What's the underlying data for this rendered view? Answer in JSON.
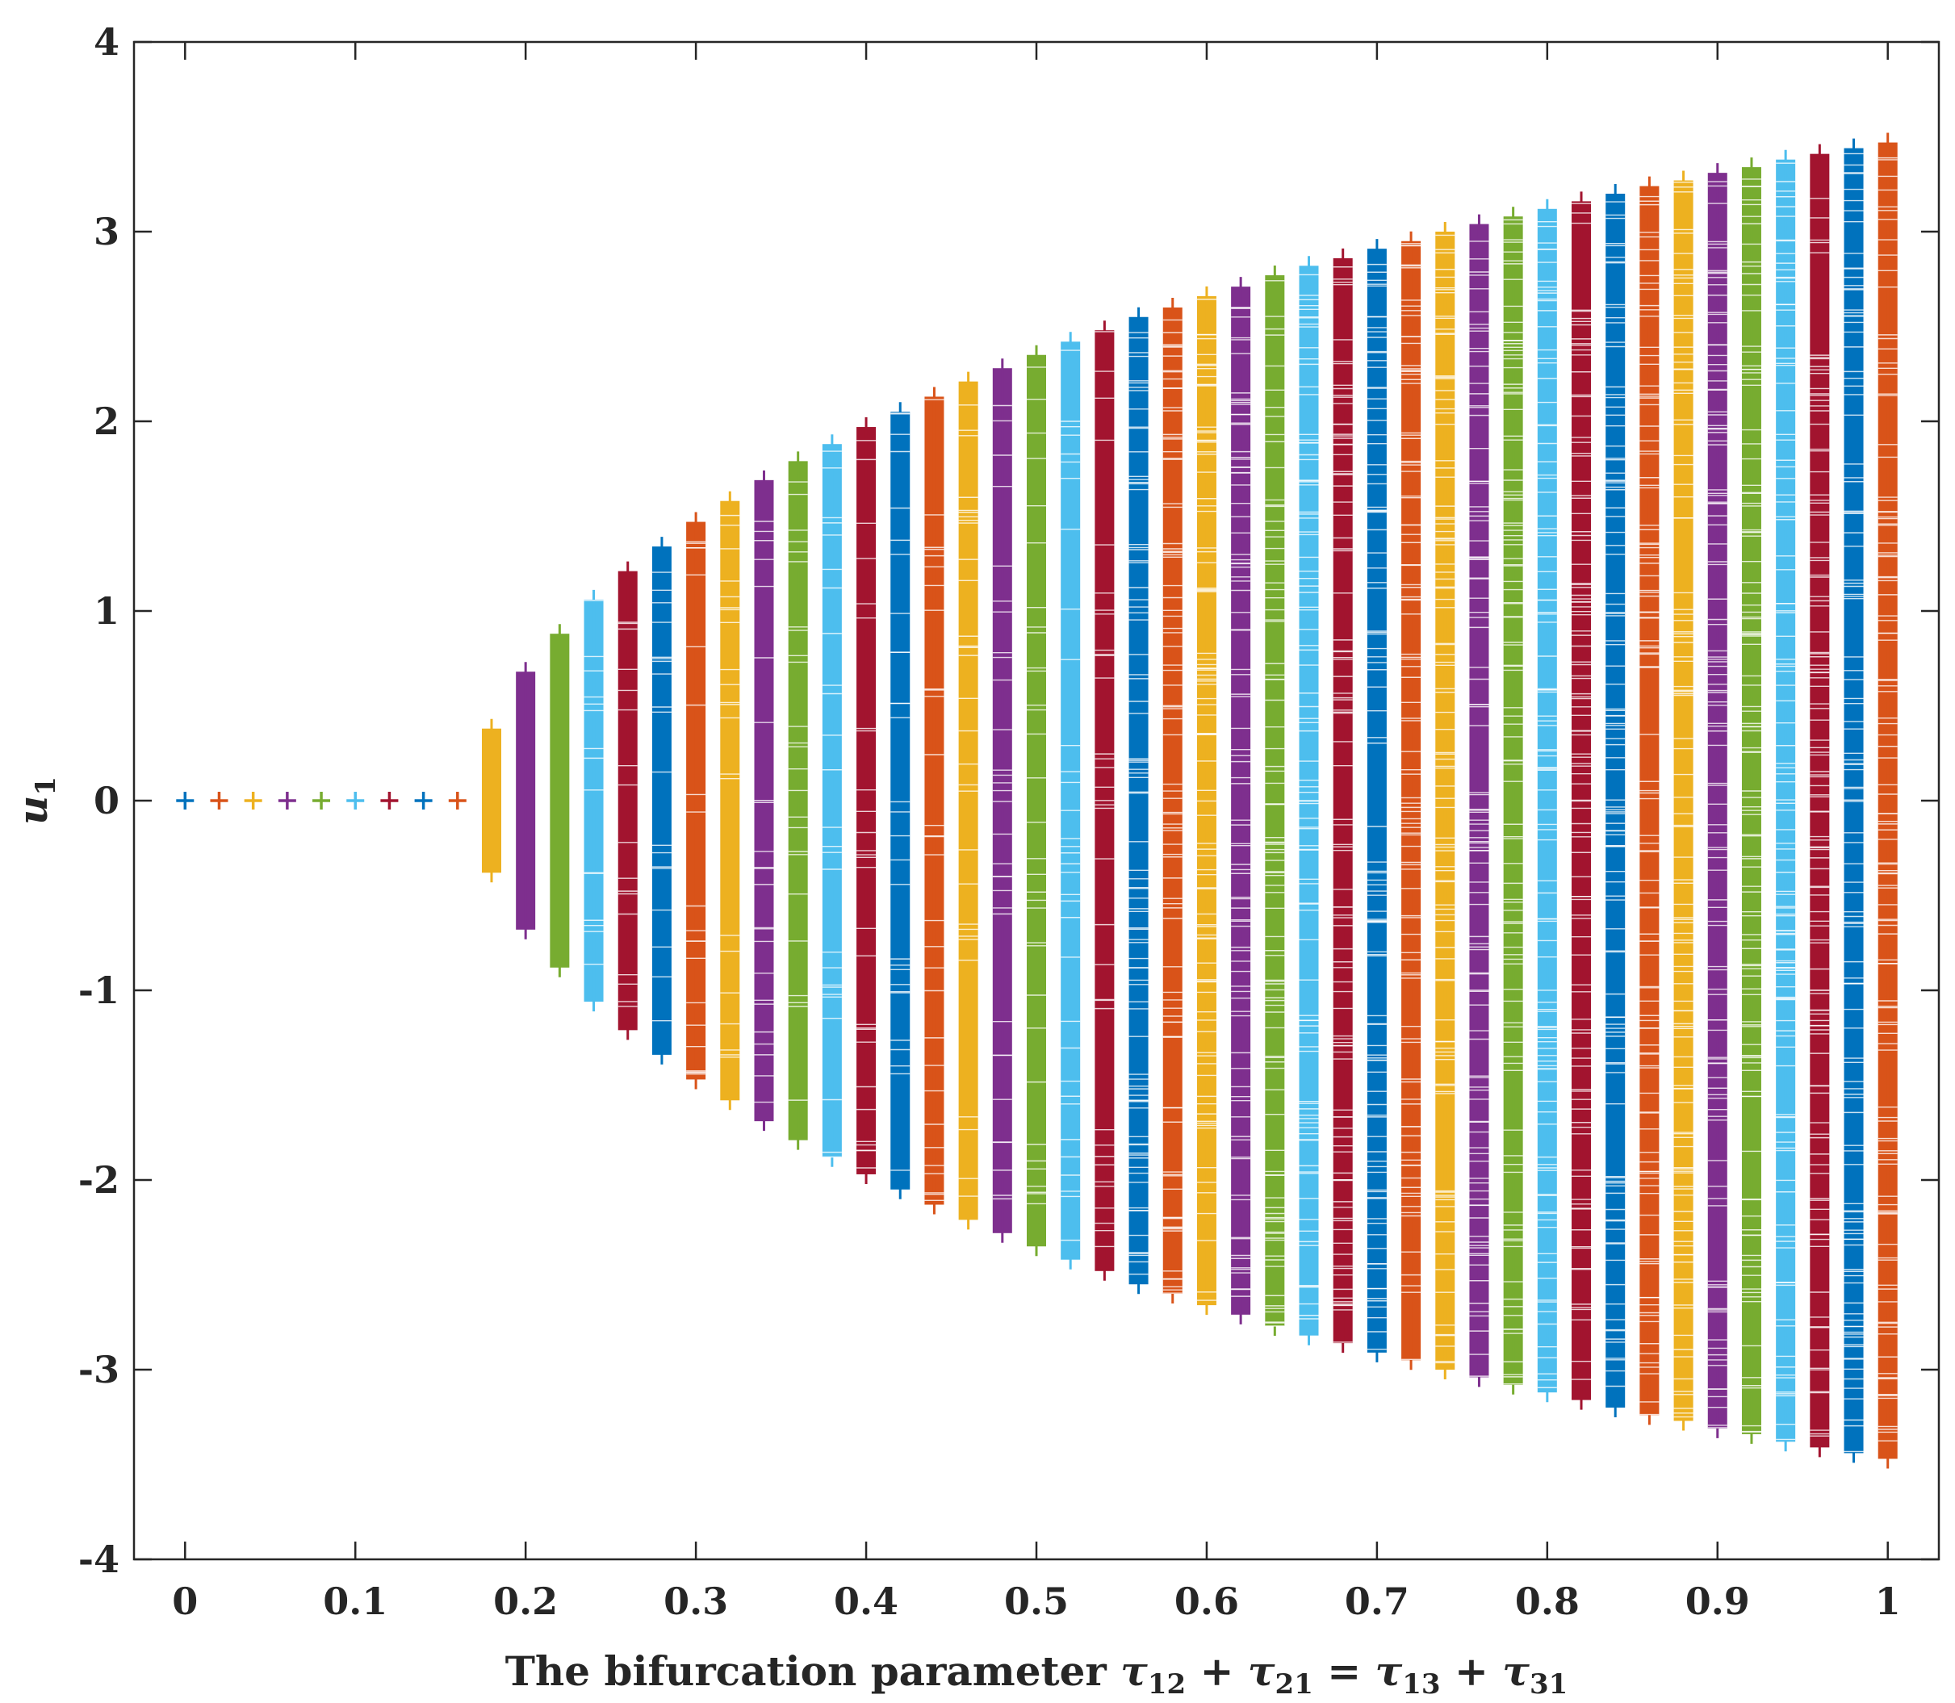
{
  "chart_data": {
    "type": "scatter",
    "title": "",
    "xlabel": {
      "prefix": "The bifurcation parameter ",
      "t1": "τ",
      "s1": "12",
      "op1": " + ",
      "t2": "τ",
      "s2": "21",
      "op2": " = ",
      "t3": "τ",
      "s3": "13",
      "op3": " + ",
      "t4": "τ",
      "s4": "31"
    },
    "ylabel": {
      "base": "u",
      "sub": "1"
    },
    "xlim": [
      -0.03,
      1.03
    ],
    "ylim": [
      -4,
      4
    ],
    "xticks": [
      0,
      0.1,
      0.2,
      0.3,
      0.4,
      0.5,
      0.6,
      0.7,
      0.8,
      0.9,
      1
    ],
    "xtick_labels": [
      "0",
      "0.1",
      "0.2",
      "0.3",
      "0.4",
      "0.5",
      "0.6",
      "0.7",
      "0.8",
      "0.9",
      "1"
    ],
    "yticks": [
      4,
      3,
      2,
      1,
      0,
      -1,
      -2,
      -3,
      -4
    ],
    "ytick_labels": [
      "4",
      "3",
      "2",
      "1",
      "0",
      "-1",
      "-2",
      "-3",
      "-4"
    ],
    "grid": false,
    "legend": "none",
    "marker": "+",
    "colors": [
      "#0072BD",
      "#D95319",
      "#EDB120",
      "#7E2F8E",
      "#77AC30",
      "#4DBEEE",
      "#A2142F"
    ],
    "x": [
      0,
      0.02,
      0.04,
      0.06,
      0.08,
      0.1,
      0.12,
      0.14,
      0.16,
      0.18,
      0.2,
      0.22,
      0.24,
      0.26,
      0.28,
      0.3,
      0.32,
      0.34,
      0.36,
      0.38,
      0.4,
      0.42,
      0.44,
      0.46,
      0.48,
      0.5,
      0.52,
      0.54,
      0.56,
      0.58,
      0.6,
      0.62,
      0.64,
      0.66,
      0.68,
      0.7,
      0.72,
      0.74,
      0.76,
      0.78,
      0.8,
      0.82,
      0.84,
      0.86,
      0.88,
      0.9,
      0.92,
      0.94,
      0.96,
      0.98,
      1
    ],
    "amplitude": [
      0,
      0,
      0,
      0,
      0,
      0,
      0,
      0,
      0,
      0.38,
      0.68,
      0.88,
      1.06,
      1.21,
      1.34,
      1.47,
      1.58,
      1.69,
      1.79,
      1.88,
      1.97,
      2.05,
      2.13,
      2.21,
      2.28,
      2.35,
      2.42,
      2.48,
      2.55,
      2.6,
      2.66,
      2.71,
      2.77,
      2.82,
      2.86,
      2.91,
      2.95,
      3.0,
      3.04,
      3.08,
      3.12,
      3.16,
      3.2,
      3.24,
      3.27,
      3.31,
      3.34,
      3.38,
      3.41,
      3.44,
      3.47
    ]
  }
}
